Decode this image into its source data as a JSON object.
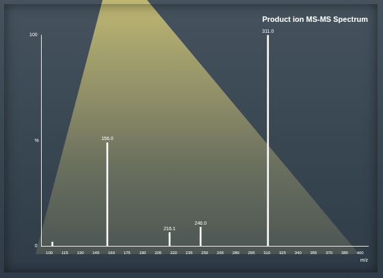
{
  "chart_data": {
    "type": "bar",
    "title": "Product ion MS-MS Spectrum",
    "x_label": "m/z",
    "y_label": "%",
    "x": [
      103,
      156,
      216.1,
      246,
      311
    ],
    "values": [
      2,
      49,
      6.5,
      9,
      100
    ],
    "annotations": [
      {
        "x": 156,
        "text": "156.0"
      },
      {
        "x": 216.1,
        "text": "216.1"
      },
      {
        "x": 246,
        "text": "246.0"
      },
      {
        "x": 311,
        "text": "311.0"
      }
    ],
    "color": "#ffffff",
    "xlim": [
      100,
      400
    ],
    "xticks": [
      100,
      115,
      130,
      145,
      160,
      175,
      190,
      205,
      220,
      235,
      250,
      265,
      280,
      295,
      310,
      325,
      340,
      355,
      370,
      385,
      400
    ],
    "ylim": [
      0,
      100
    ],
    "yticks": [
      0,
      100
    ],
    "grid": false
  }
}
